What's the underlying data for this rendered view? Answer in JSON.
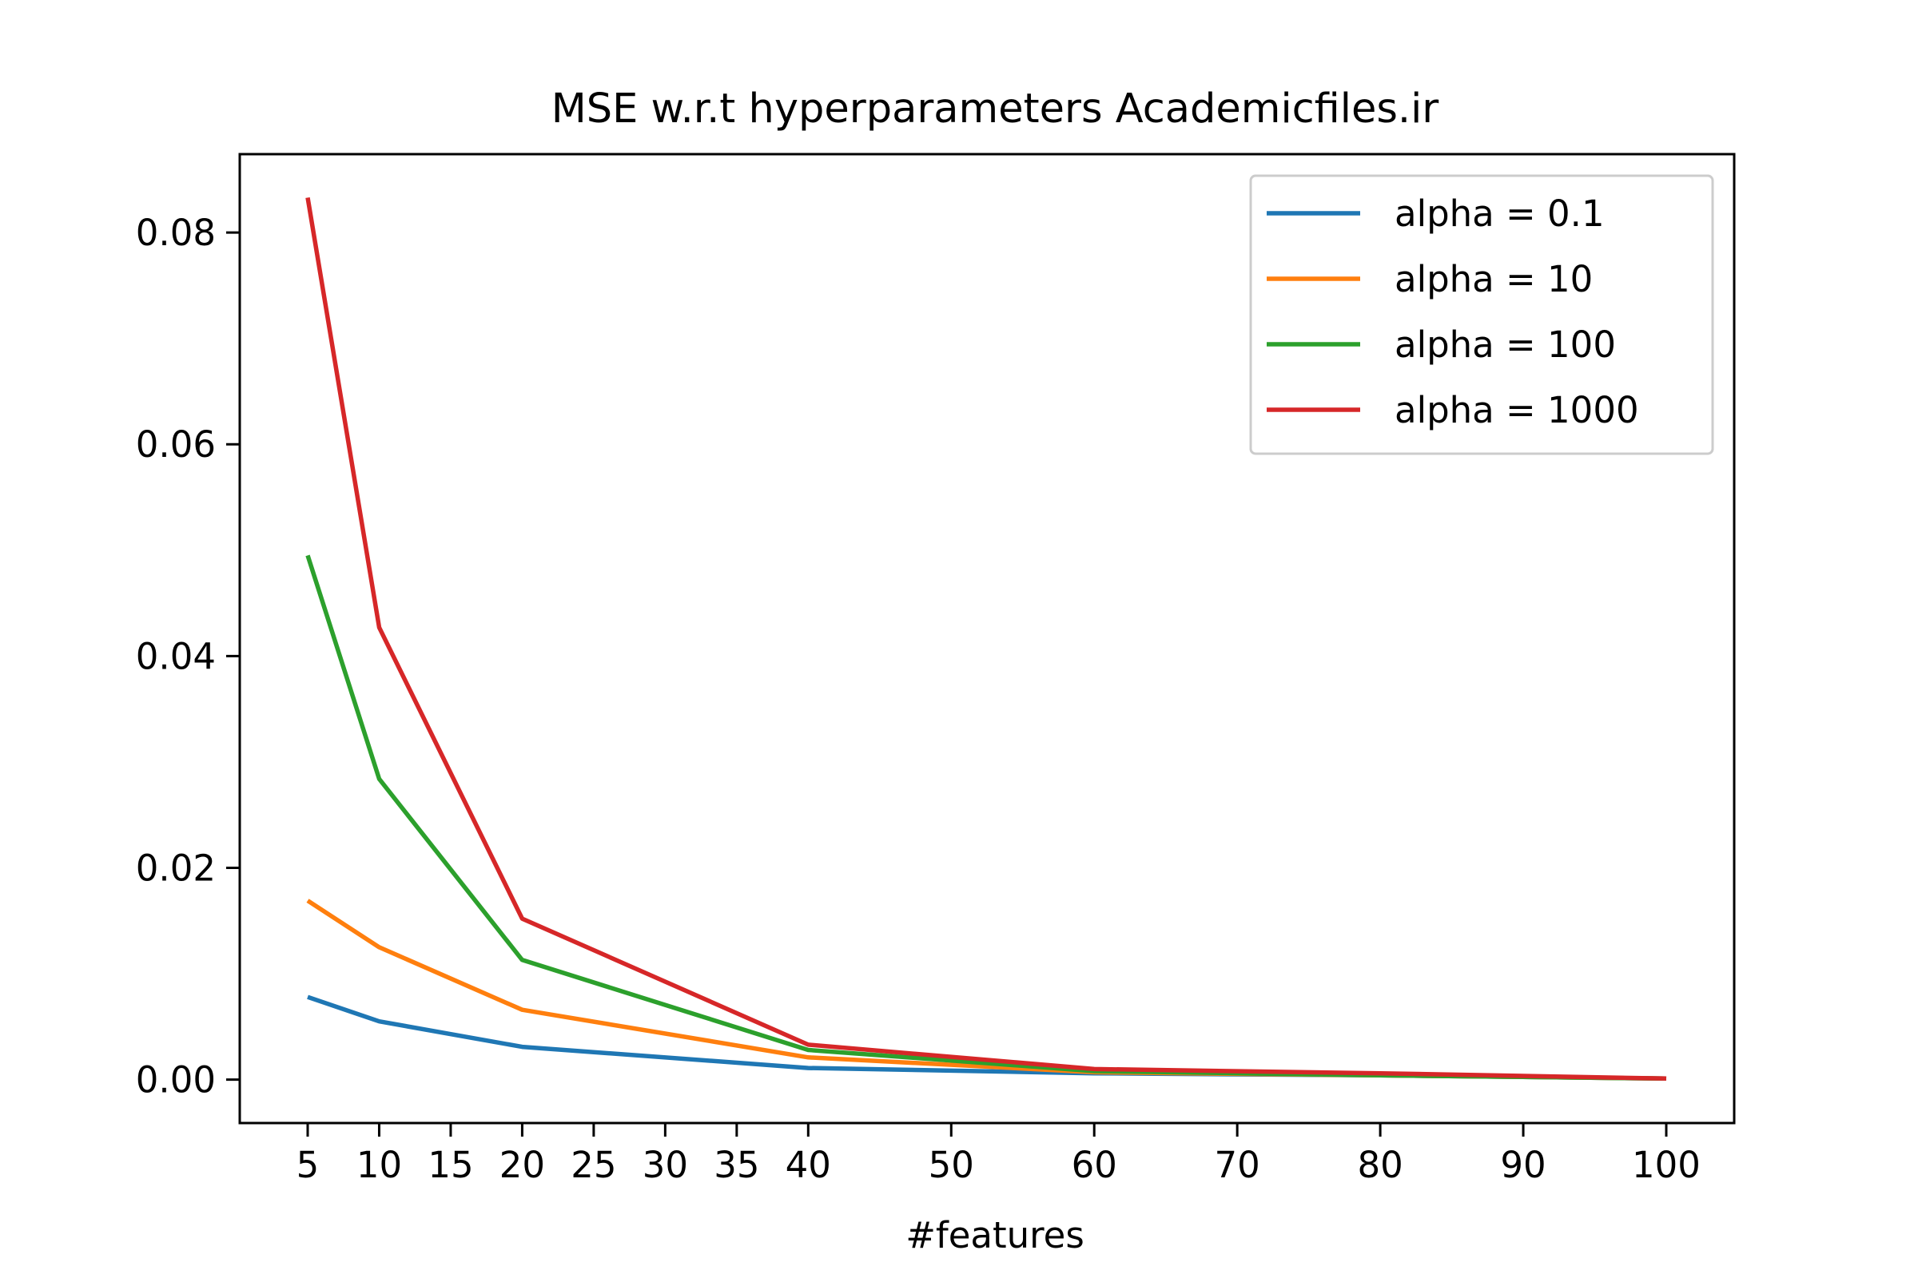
{
  "chart_data": {
    "type": "line",
    "title": "MSE w.r.t hyperparameters Academicfiles.ir",
    "xlabel": "#features",
    "ylabel": "",
    "x": [
      5,
      10,
      20,
      40,
      60,
      80,
      100
    ],
    "xticks": [
      5,
      10,
      15,
      20,
      25,
      30,
      35,
      40,
      50,
      60,
      70,
      80,
      90,
      100
    ],
    "xtick_labels": [
      "5",
      "10",
      "15",
      "20",
      "25",
      "30",
      "35",
      "40",
      "50",
      "60",
      "70",
      "80",
      "90",
      "100"
    ],
    "xlim": [
      0.25,
      104.75
    ],
    "yticks": [
      0.0,
      0.02,
      0.04,
      0.06,
      0.08
    ],
    "ytick_labels": [
      "0.00",
      "0.02",
      "0.04",
      "0.06",
      "0.08"
    ],
    "ylim": [
      -0.0041,
      0.0874
    ],
    "grid": false,
    "legend_position": "top-right",
    "series": [
      {
        "name": "alpha = 0.1",
        "color": "#1f77b4",
        "values": [
          0.0078,
          0.0055,
          0.0031,
          0.0011,
          0.0006,
          0.0004,
          0.0001
        ]
      },
      {
        "name": "alpha = 10",
        "color": "#ff7f0e",
        "values": [
          0.0169,
          0.0125,
          0.0066,
          0.0021,
          0.0007,
          0.0004,
          0.0001
        ]
      },
      {
        "name": "alpha = 100",
        "color": "#2ca02c",
        "values": [
          0.0495,
          0.0284,
          0.0113,
          0.0028,
          0.0008,
          0.0004,
          0.0001
        ]
      },
      {
        "name": "alpha = 1000",
        "color": "#d62728",
        "values": [
          0.0833,
          0.0427,
          0.0152,
          0.0033,
          0.001,
          0.0006,
          0.0001
        ]
      }
    ]
  }
}
